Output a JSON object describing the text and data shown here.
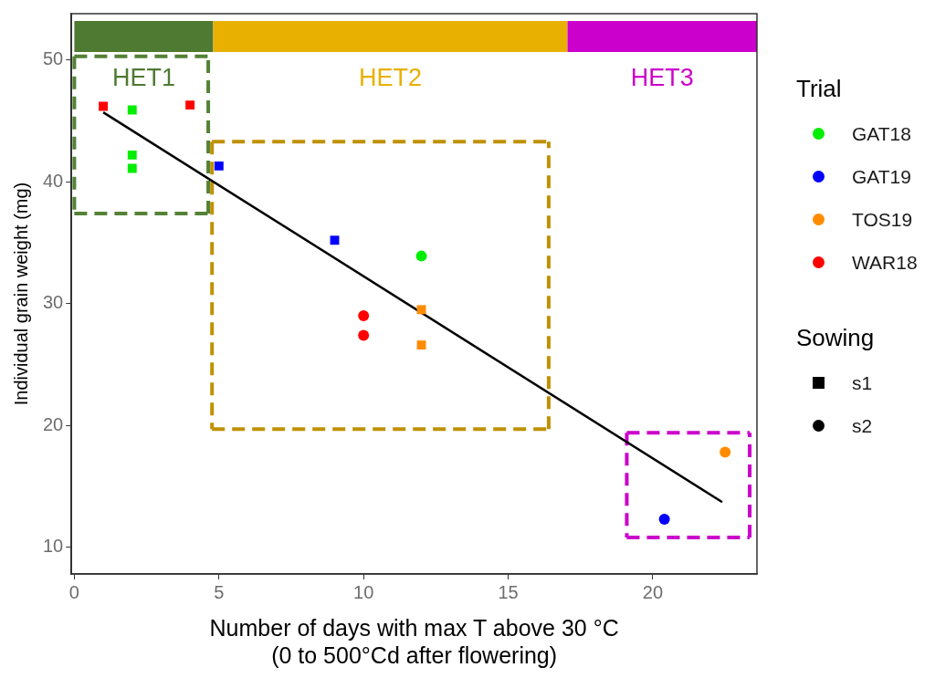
{
  "chart_data": {
    "type": "scatter",
    "xlabel": "Number of days with max T above 30 °C\n(0 to 500°Cd after flowering)",
    "ylabel": "Individual grain weight (mg)",
    "legend_title": "Trial",
    "legend": "right",
    "grid": false,
    "xlim": [
      -0.1,
      23.6
    ],
    "xticks": [
      0,
      5,
      10,
      15,
      20
    ],
    "ylim": [
      7.8,
      53.8
    ],
    "yticks": [
      10,
      20,
      30,
      40,
      50
    ],
    "bands": [
      {
        "axis": "x",
        "from": 0,
        "to": 4.8,
        "label": "HET1",
        "color": "#4f7a32"
      },
      {
        "axis": "x",
        "from": 4.8,
        "to": 17.05,
        "label": "HET2",
        "color": "#e8b000"
      },
      {
        "axis": "x",
        "from": 17.05,
        "to": 23.6,
        "label": "HET3",
        "color": "#cc00cc"
      }
    ],
    "annotations": [
      "Sowing",
      "s1",
      "s2"
    ],
    "series": [
      {
        "name": "GAT18",
        "color": "#00ee00",
        "marker": "circle",
        "x": [
          12
        ],
        "values": [
          33.9
        ]
      },
      {
        "name": "GAT19",
        "color": "#0000ff",
        "marker": "circle",
        "x": [
          20.4
        ],
        "values": [
          12.3
        ]
      },
      {
        "name": "TOS19",
        "color": "#ff8c00",
        "marker": "circle",
        "x": [
          22.5
        ],
        "values": [
          17.8
        ]
      },
      {
        "name": "WAR18",
        "color": "#ff0000",
        "marker": "circle",
        "x": [
          10,
          10
        ],
        "values": [
          29.0,
          27.4
        ]
      },
      {
        "color": "#00ee00",
        "marker": "square",
        "x": [
          2,
          2,
          2
        ],
        "values": [
          45.9,
          42.2,
          41.1
        ]
      },
      {
        "color": "#0000ff",
        "marker": "square",
        "x": [
          5,
          9
        ],
        "values": [
          41.3,
          35.2
        ]
      },
      {
        "color": "#ff8c00",
        "marker": "square",
        "x": [
          12,
          12
        ],
        "values": [
          29.5,
          26.6
        ]
      },
      {
        "color": "#ff0000",
        "marker": "square",
        "x": [
          1,
          4
        ],
        "values": [
          46.2,
          46.3
        ]
      },
      {
        "type": "line",
        "color": "#000000",
        "marker": "none",
        "x": [
          1,
          22.4
        ],
        "values": [
          45.7,
          13.7
        ]
      },
      {
        "type": "line",
        "color": "#548235",
        "marker": "none",
        "line_style": "dashed",
        "x": [
          0,
          0,
          4.63,
          4.63
        ],
        "values": [
          50.3,
          37.4,
          37.4,
          50.3
        ]
      },
      {
        "type": "line",
        "color": "#538135",
        "marker": "none",
        "line_style": "dashed",
        "x": [
          0,
          4.63
        ],
        "values": [
          50.3,
          50.3
        ]
      },
      {
        "type": "line",
        "color": "#c09100",
        "marker": "none",
        "line_style": "dashed",
        "x": [
          4.76,
          4.76,
          16.4,
          16.4
        ],
        "values": [
          43.3,
          19.7,
          19.7,
          43.3
        ]
      },
      {
        "type": "line",
        "color": "#bf9000",
        "marker": "none",
        "line_style": "dashed",
        "x": [
          4.76,
          16.4
        ],
        "values": [
          43.3,
          43.3
        ]
      },
      {
        "type": "line",
        "color": "#cb01cb",
        "marker": "none",
        "line_style": "dashed",
        "x": [
          19.1,
          19.1,
          23.35,
          23.35
        ],
        "values": [
          19.4,
          10.8,
          10.8,
          19.4
        ]
      },
      {
        "type": "line",
        "color": "#cc00cc",
        "marker": "none",
        "line_style": "dashed",
        "x": [
          19.1,
          23.35
        ],
        "values": [
          19.4,
          19.4
        ]
      }
    ]
  }
}
